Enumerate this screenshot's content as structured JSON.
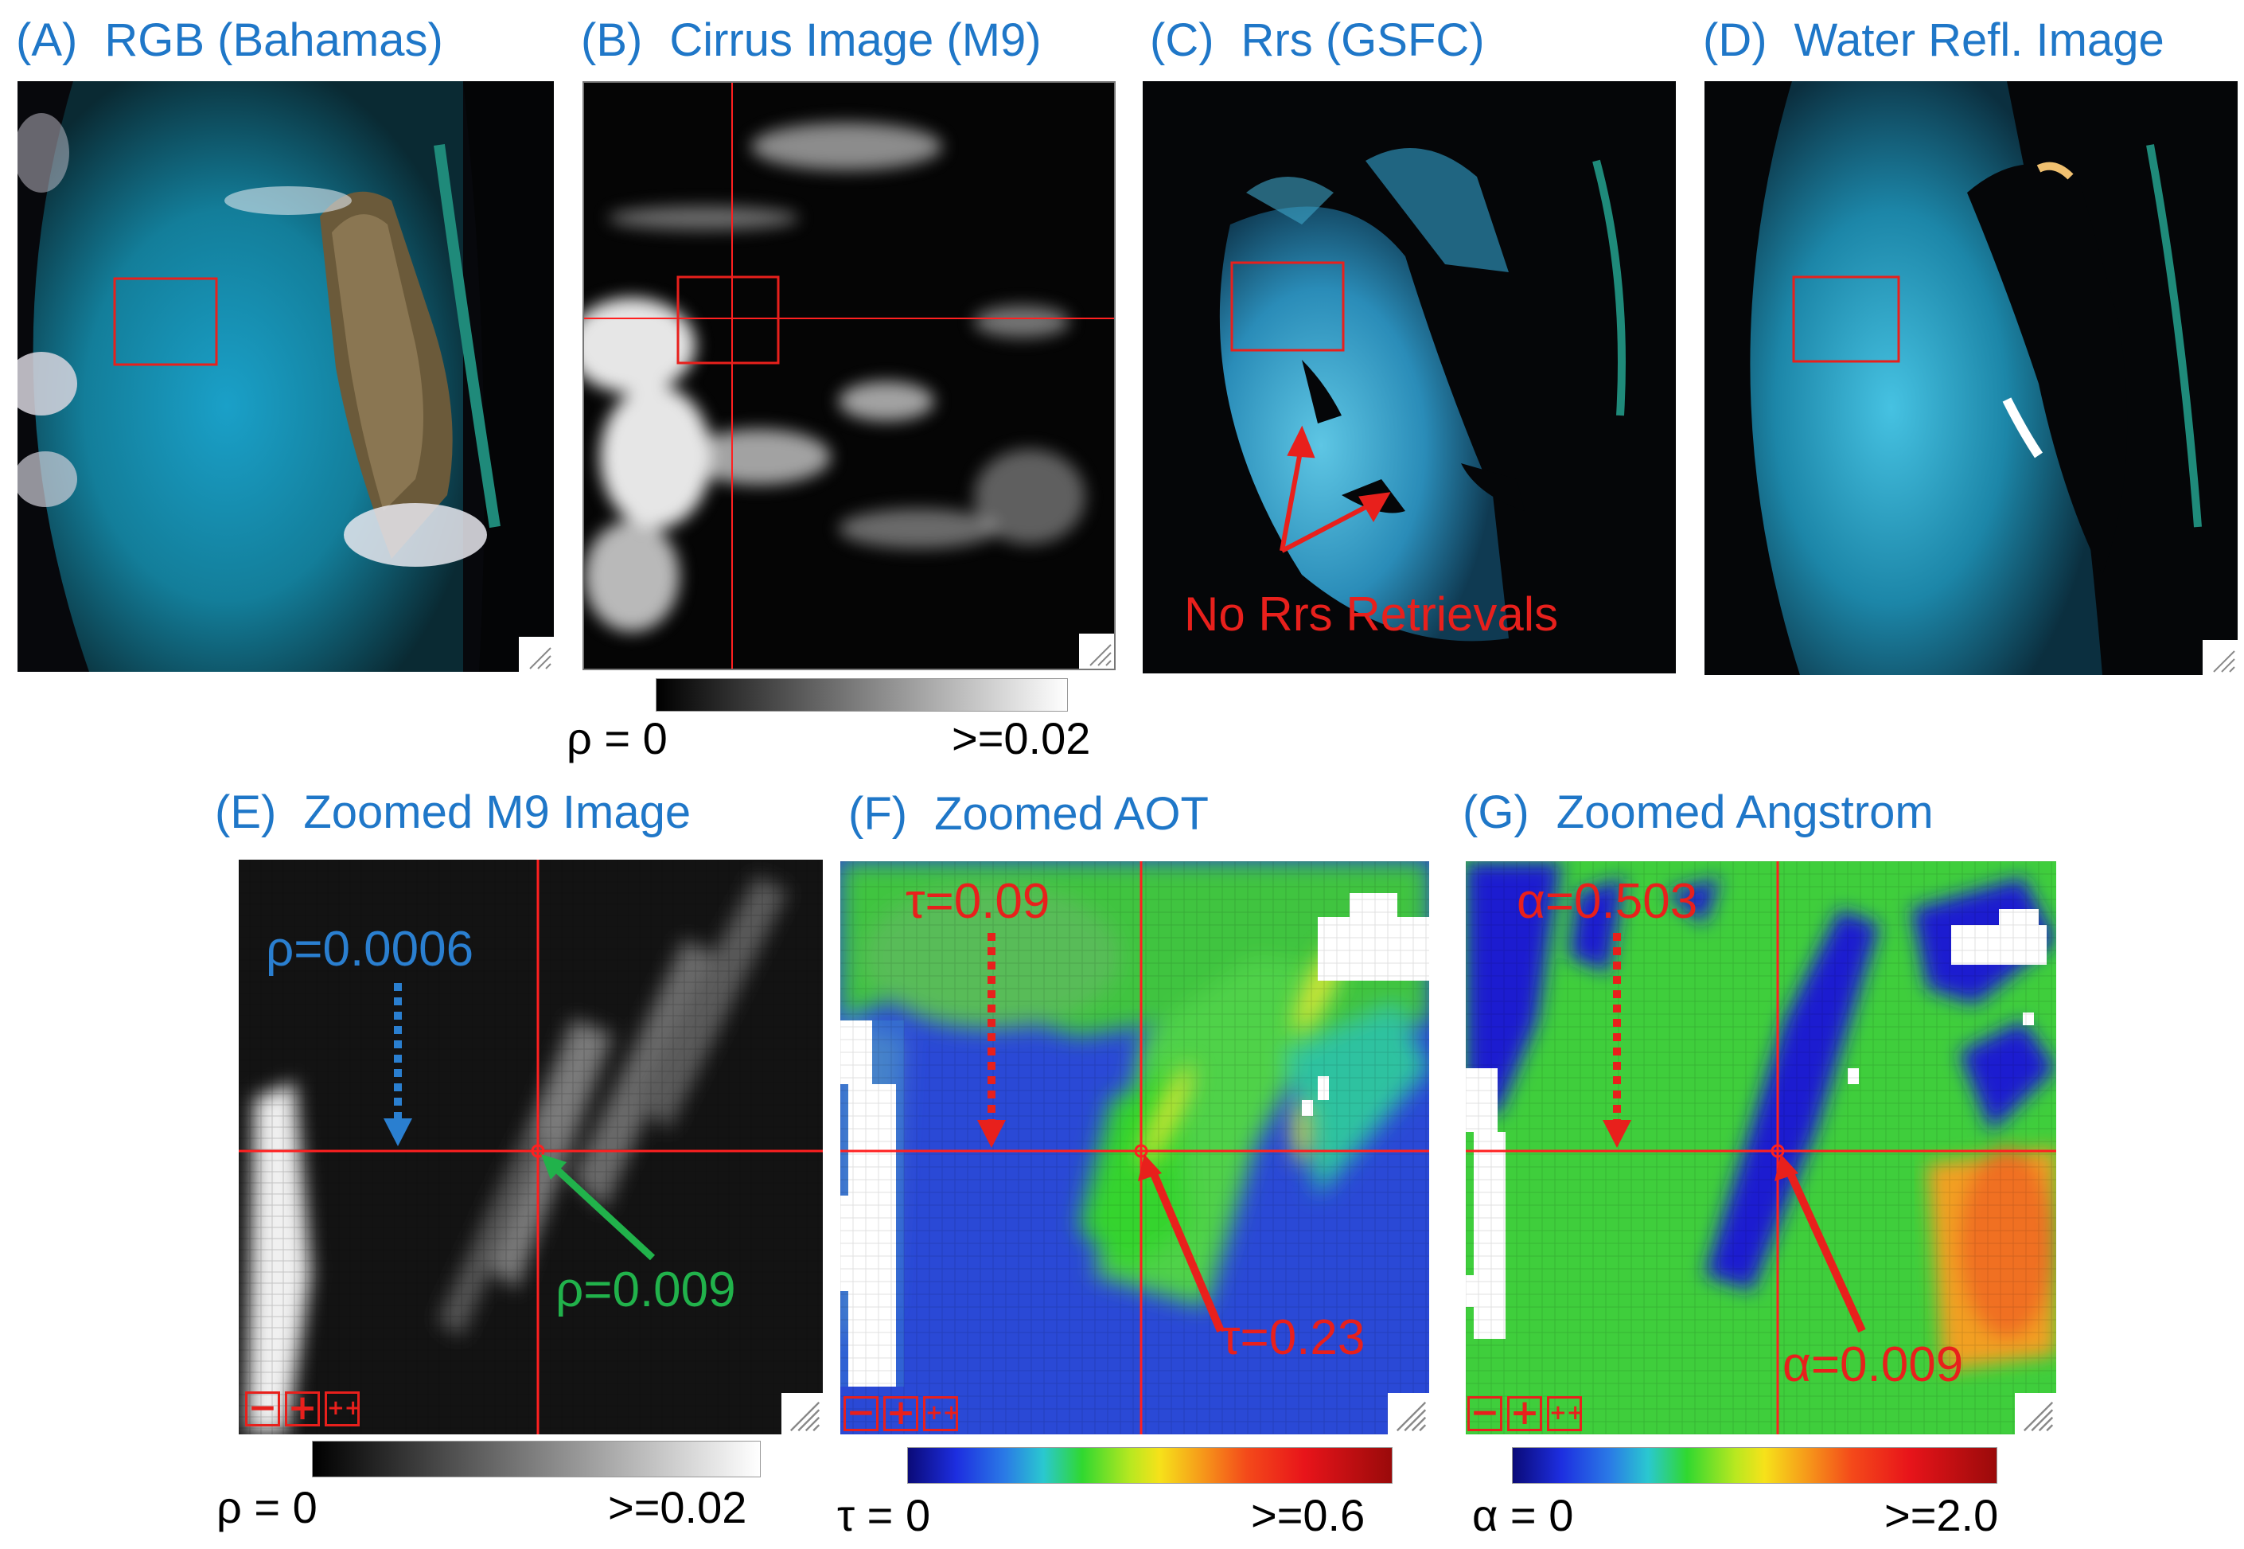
{
  "panels": {
    "a": {
      "tag": "(A)",
      "title": "RGB (Bahamas)"
    },
    "b": {
      "tag": "(B)",
      "title": "Cirrus Image (M9)"
    },
    "c": {
      "tag": "(C)",
      "title": "Rrs (GSFC)",
      "annotation": "No Rrs Retrievals"
    },
    "d": {
      "tag": "(D)",
      "title": "Water Refl. Image"
    },
    "e": {
      "tag": "(E)",
      "title": "Zoomed M9 Image",
      "value_left": "ρ=0.0006",
      "value_center": "ρ=0.009"
    },
    "f": {
      "tag": "(F)",
      "title": "Zoomed AOT",
      "value_left": "τ=0.09",
      "value_center": "τ=0.23"
    },
    "g": {
      "tag": "(G)",
      "title": "Zoomed Angstrom",
      "value_left": "α=0.503",
      "value_center": "α=0.009"
    }
  },
  "colorbars": {
    "b": {
      "min": "ρ = 0",
      "max": ">=0.02",
      "scheme": "grayscale"
    },
    "e": {
      "min": "ρ = 0",
      "max": ">=0.02",
      "scheme": "grayscale"
    },
    "f": {
      "min": "τ = 0",
      "max": ">=0.6",
      "scheme": "rainbow"
    },
    "g": {
      "min": "α = 0",
      "max": ">=2.0",
      "scheme": "rainbow"
    }
  },
  "zoom_controls": {
    "minus": "−",
    "plus": "+",
    "plus_plus": "++"
  },
  "colors": {
    "title_blue": "#1f77c8",
    "annotation_red": "#e8201c",
    "annotation_green": "#21b24b",
    "crosshair_red": "#ff2020"
  }
}
